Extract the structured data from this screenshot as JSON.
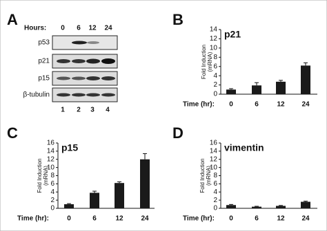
{
  "blot": {
    "panel_label": "A",
    "hours_label": "Hours:",
    "hours": [
      "0",
      "6",
      "12",
      "24"
    ],
    "rows": [
      "p53",
      "p21",
      "p15",
      "β-tubulin"
    ],
    "lanes": [
      "1",
      "2",
      "3",
      "4"
    ]
  },
  "chart_data": [
    {
      "type": "bar",
      "panel_label": "B",
      "title": "p21",
      "ylabel": [
        "Fold Induction",
        "(mRNA)"
      ],
      "xlabel": "Time (hr):",
      "categories": [
        "0",
        "6",
        "12",
        "24"
      ],
      "values": [
        1.0,
        1.9,
        2.7,
        6.2
      ],
      "errors": [
        0.2,
        0.6,
        0.3,
        0.6
      ],
      "color": "#1a1a1a",
      "ylim": [
        0,
        14
      ],
      "yticks": [
        0,
        2,
        4,
        6,
        8,
        10,
        12,
        14
      ]
    },
    {
      "type": "bar",
      "panel_label": "C",
      "title": "p15",
      "ylabel": [
        "Fold Induction",
        "(mRNA)"
      ],
      "xlabel": "Time (hr):",
      "categories": [
        "0",
        "6",
        "12",
        "24"
      ],
      "values": [
        1.0,
        3.8,
        6.2,
        12.0
      ],
      "errors": [
        0.15,
        0.4,
        0.3,
        1.4
      ],
      "color": "#1a1a1a",
      "ylim": [
        0,
        16
      ],
      "yticks": [
        0,
        2,
        4,
        6,
        8,
        10,
        12,
        14,
        16
      ]
    },
    {
      "type": "bar",
      "panel_label": "D",
      "title": "vimentin",
      "ylabel": [
        "Fold Induction",
        "(mRNA)"
      ],
      "xlabel": "Time (hr):",
      "categories": [
        "0",
        "6",
        "12",
        "24"
      ],
      "values": [
        0.8,
        0.4,
        0.6,
        1.6
      ],
      "errors": [
        0.15,
        0.1,
        0.1,
        0.15
      ],
      "color": "#1a1a1a",
      "ylim": [
        0,
        16
      ],
      "yticks": [
        0,
        2,
        4,
        6,
        8,
        10,
        12,
        14,
        16
      ]
    }
  ]
}
